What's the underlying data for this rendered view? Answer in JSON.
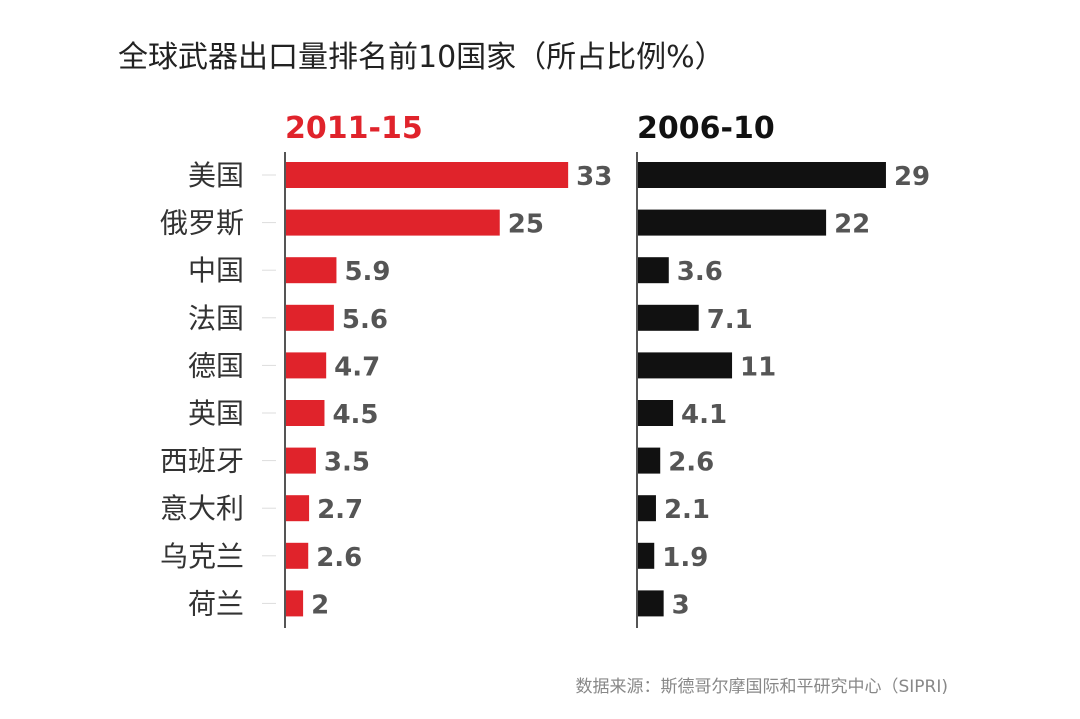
{
  "title": "全球武器出口量排名前10国家（所占比例%）",
  "source": "数据来源：斯德哥尔摩国际和平研究中心（SIPRI)",
  "chart_data": {
    "type": "bar",
    "orientation": "horizontal",
    "title": "全球武器出口量排名前10国家（所占比例%）",
    "categories": [
      "美国",
      "俄罗斯",
      "中国",
      "法国",
      "德国",
      "英国",
      "西班牙",
      "意大利",
      "乌克兰",
      "荷兰"
    ],
    "series": [
      {
        "name": "2011-15",
        "values": [
          33,
          25,
          5.9,
          5.6,
          4.7,
          4.5,
          3.5,
          2.7,
          2.6,
          2
        ],
        "labels": [
          "33",
          "25",
          "5.9",
          "5.6",
          "4.7",
          "4.5",
          "3.5",
          "2.7",
          "2.6",
          "2"
        ],
        "color": "#e0232b"
      },
      {
        "name": "2006-10",
        "values": [
          29,
          22,
          3.6,
          7.1,
          11,
          4.1,
          2.6,
          2.1,
          1.9,
          3
        ],
        "labels": [
          "29",
          "22",
          "3.6",
          "7.1",
          "11",
          "4.1",
          "2.6",
          "2.1",
          "1.9",
          "3"
        ],
        "color": "#111111"
      }
    ],
    "grid": false,
    "legend": "top"
  }
}
